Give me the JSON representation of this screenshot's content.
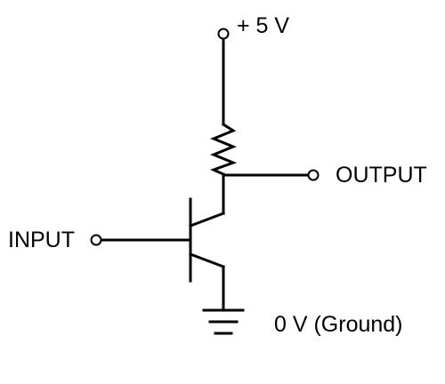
{
  "labels": {
    "supply": "+ 5 V",
    "output": "OUTPUT",
    "input": "INPUT",
    "ground": "0 V (Ground)"
  },
  "colors": {
    "ink": "#000000",
    "background": "#ffffff"
  },
  "components": {
    "resistor": "resistor-zigzag",
    "transistor": "npn-bipolar-transistor",
    "ground": "ground-symbol"
  }
}
